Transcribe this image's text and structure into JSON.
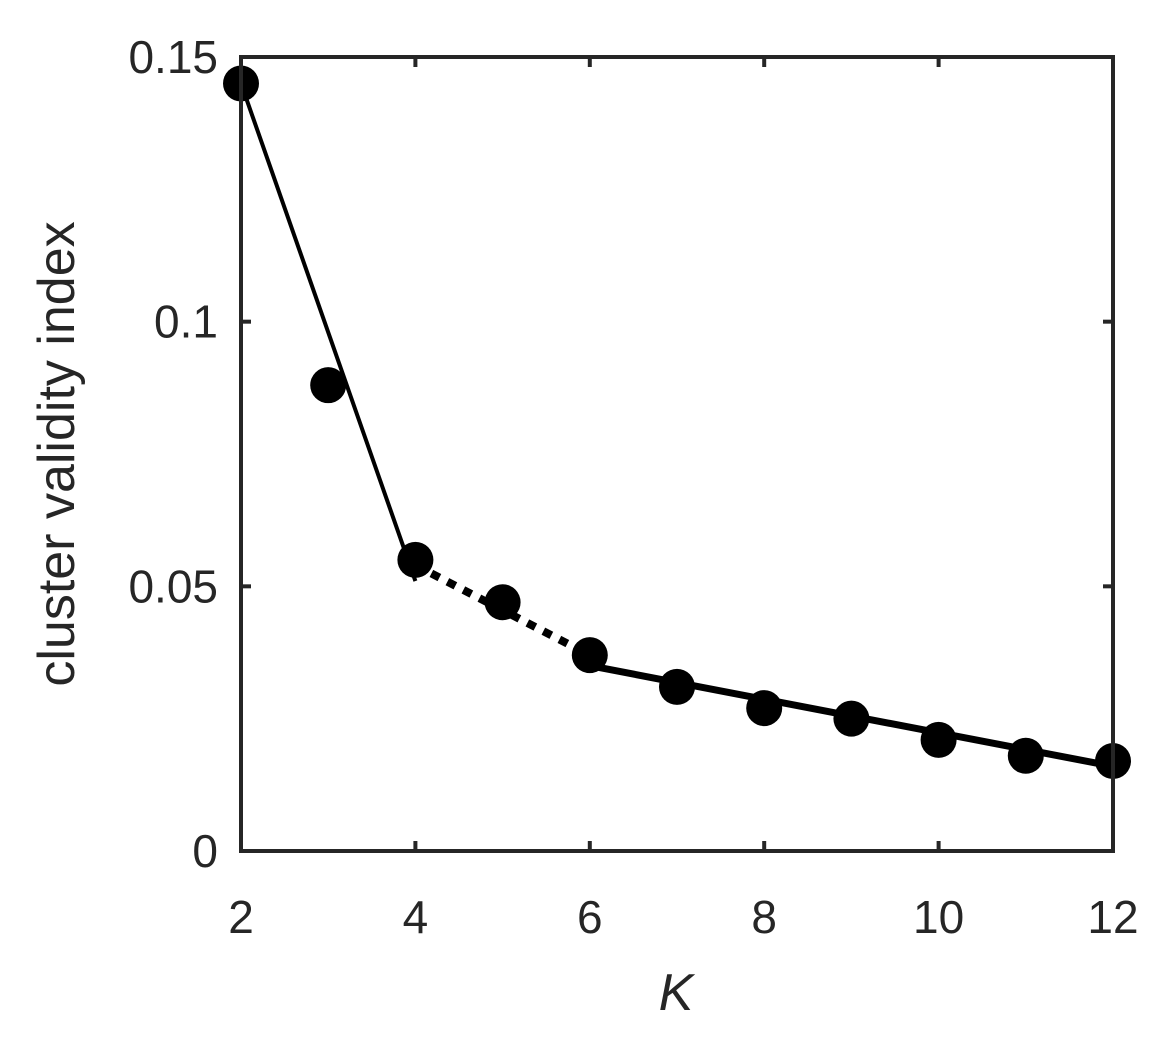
{
  "chart_data": {
    "type": "line",
    "xlabel": "K",
    "ylabel": "cluster validity index",
    "xlim": [
      2,
      12
    ],
    "ylim": [
      0,
      0.15
    ],
    "xticks": [
      2,
      4,
      6,
      8,
      10,
      12
    ],
    "xtick_labels": [
      "2",
      "4",
      "6",
      "8",
      "10",
      "12"
    ],
    "yticks": [
      0,
      0.05,
      0.1,
      0.15
    ],
    "ytick_labels": [
      "0",
      "0.05",
      "0.1",
      "0.15"
    ],
    "grid": false,
    "markers": {
      "x": [
        2,
        3,
        4,
        5,
        6,
        7,
        8,
        9,
        10,
        11,
        12
      ],
      "y": [
        0.145,
        0.088,
        0.055,
        0.047,
        0.037,
        0.031,
        0.027,
        0.025,
        0.021,
        0.018,
        0.017
      ]
    },
    "fit_lines": [
      {
        "style": "solid",
        "x": [
          2,
          4
        ],
        "y": [
          0.145,
          0.051
        ]
      },
      {
        "style": "dotted",
        "x": [
          4,
          6
        ],
        "y": [
          0.054,
          0.037
        ]
      },
      {
        "style": "solid",
        "x": [
          6,
          12
        ],
        "y": [
          0.035,
          0.016
        ]
      }
    ],
    "colors": {
      "axis": "#262626",
      "series": "#000000"
    }
  }
}
